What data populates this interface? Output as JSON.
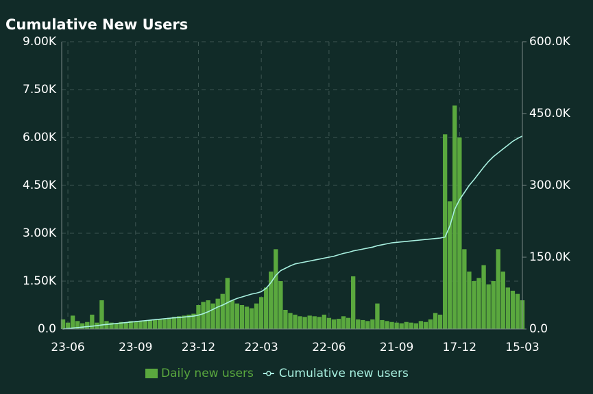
{
  "chart_data": {
    "type": "bar_line",
    "title": "Cumulative New Users",
    "categories": [
      null,
      "23-06",
      null,
      null,
      null,
      null,
      null,
      null,
      null,
      null,
      null,
      null,
      null,
      null,
      null,
      "23-09",
      null,
      null,
      null,
      null,
      null,
      null,
      null,
      null,
      null,
      null,
      null,
      null,
      "23-12",
      null,
      null,
      null,
      null,
      null,
      null,
      null,
      null,
      null,
      null,
      null,
      null,
      "22-03",
      null,
      null,
      null,
      null,
      null,
      null,
      null,
      null,
      null,
      null,
      null,
      null,
      null,
      "22-06",
      null,
      null,
      null,
      null,
      null,
      null,
      null,
      null,
      null,
      null,
      null,
      null,
      null,
      "21-09",
      null,
      null,
      null,
      null,
      null,
      null,
      null,
      null,
      null,
      null,
      null,
      null,
      "17-12",
      null,
      null,
      null,
      null,
      null,
      null,
      null,
      null,
      null,
      null,
      null,
      null,
      "15-03"
    ],
    "series": [
      {
        "name": "Daily new users",
        "color": "#5aa83e",
        "axis": "y",
        "values": [
          300,
          200,
          420,
          250,
          180,
          220,
          450,
          200,
          900,
          250,
          200,
          180,
          220,
          200,
          250,
          230,
          250,
          260,
          280,
          300,
          320,
          300,
          350,
          380,
          400,
          420,
          450,
          480,
          750,
          850,
          900,
          800,
          950,
          1100,
          1600,
          900,
          800,
          750,
          700,
          650,
          800,
          1000,
          1300,
          1800,
          2500,
          1500,
          600,
          500,
          450,
          400,
          380,
          420,
          400,
          380,
          450,
          350,
          300,
          320,
          400,
          350,
          1650,
          300,
          280,
          250,
          300,
          800,
          280,
          250,
          220,
          200,
          180,
          220,
          200,
          180,
          250,
          220,
          300,
          500,
          450,
          6100,
          4000,
          7000,
          6000,
          2500,
          1800,
          1500,
          1600,
          2000,
          1400,
          1500,
          2500,
          1800,
          1300,
          1200,
          1100,
          900
        ]
      },
      {
        "name": "Cumulative new users",
        "color": "#a8f0e0",
        "axis": "y2",
        "values": [
          0,
          1000,
          2000,
          3000,
          4000,
          5000,
          6000,
          7000,
          8500,
          9500,
          10500,
          11500,
          12500,
          13500,
          14500,
          15500,
          16500,
          17500,
          18500,
          19500,
          20500,
          21500,
          22500,
          23500,
          24000,
          25000,
          26000,
          27000,
          29000,
          32000,
          36000,
          41000,
          46000,
          50000,
          55000,
          60000,
          64000,
          67000,
          70000,
          73000,
          75000,
          78000,
          85000,
          97000,
          112000,
          122000,
          127000,
          132000,
          136000,
          138000,
          140000,
          142000,
          144000,
          146000,
          148000,
          150000,
          152000,
          155000,
          158000,
          160000,
          163000,
          165000,
          167000,
          169000,
          171000,
          174000,
          176000,
          178000,
          180000,
          181000,
          182000,
          183000,
          184000,
          185000,
          186000,
          187000,
          188000,
          189000,
          190000,
          192000,
          215000,
          250000,
          270000,
          285000,
          300000,
          312000,
          325000,
          338000,
          350000,
          360000,
          368000,
          376000,
          384000,
          392000,
          398000,
          403000
        ]
      }
    ],
    "ylim": [
      0,
      9000
    ],
    "yticks": [
      {
        "value": 0,
        "label": "0.0"
      },
      {
        "value": 1500,
        "label": "1.50K"
      },
      {
        "value": 3000,
        "label": "3.00K"
      },
      {
        "value": 4500,
        "label": "4.50K"
      },
      {
        "value": 6000,
        "label": "6.00K"
      },
      {
        "value": 7500,
        "label": "7.50K"
      },
      {
        "value": 9000,
        "label": "9.00K"
      }
    ],
    "y2lim": [
      0,
      600000
    ],
    "y2ticks": [
      {
        "value": 0,
        "label": "0.0"
      },
      {
        "value": 150000,
        "label": "150.0K"
      },
      {
        "value": 300000,
        "label": "300.0K"
      },
      {
        "value": 450000,
        "label": "450.0K"
      },
      {
        "value": 600000,
        "label": "600.0K"
      }
    ],
    "grid": true,
    "legend": "bottom"
  }
}
